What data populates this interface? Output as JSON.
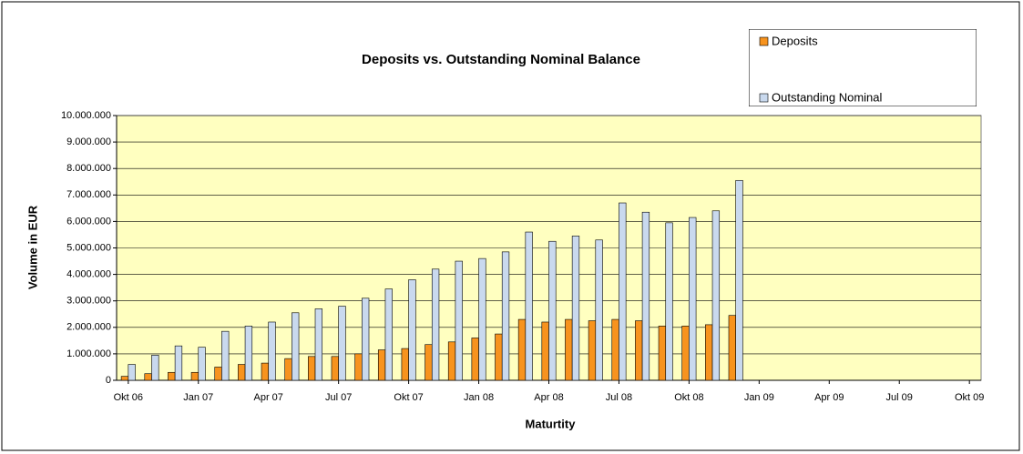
{
  "chart_data": {
    "type": "bar",
    "title": "Deposits vs. Outstanding Nominal Balance",
    "x_label": "Maturtity",
    "y_label": "Volume in EUR",
    "categories": [
      "Okt 06",
      null,
      null,
      "Jan 07",
      null,
      null,
      "Apr 07",
      null,
      null,
      "Jul 07",
      null,
      null,
      "Okt 07",
      null,
      null,
      "Jan 08",
      null,
      null,
      "Apr 08",
      null,
      null,
      "Jul 08",
      null,
      null,
      "Okt 08",
      null,
      null,
      "Jan 09",
      null,
      null,
      "Apr 09",
      null,
      null,
      "Jul 09",
      null,
      null,
      "Okt 09"
    ],
    "series": [
      {
        "name": "Deposits",
        "color": "#f7931e",
        "values": [
          150000,
          250000,
          300000,
          300000,
          500000,
          600000,
          650000,
          820000,
          900000,
          900000,
          1000000,
          1150000,
          1200000,
          1350000,
          1450000,
          1600000,
          1750000,
          2300000,
          2200000,
          2300000,
          2250000,
          2300000,
          2250000,
          2050000,
          2050000,
          2100000,
          2450000,
          null,
          null,
          null,
          null,
          null,
          null,
          null,
          null,
          null,
          null
        ]
      },
      {
        "name": "Outstanding Nominal",
        "color": "#c9d9ee",
        "values": [
          600000,
          950000,
          1300000,
          1250000,
          1850000,
          2050000,
          2200000,
          2550000,
          2700000,
          2800000,
          3100000,
          3450000,
          3800000,
          4200000,
          4500000,
          4600000,
          4850000,
          5600000,
          5250000,
          5450000,
          5300000,
          6700000,
          6350000,
          5950000,
          6150000,
          6400000,
          7550000,
          null,
          null,
          null,
          null,
          null,
          null,
          null,
          null,
          null,
          null
        ]
      }
    ],
    "ylim": [
      0,
      10000000
    ],
    "yticks": [
      0,
      {
        "value": 1000000,
        "label": "1.000.000"
      },
      {
        "value": 2000000,
        "label": "2.000.000"
      },
      {
        "value": 3000000,
        "label": "3.000.000"
      },
      {
        "value": 4000000,
        "label": "4.000.000"
      },
      {
        "value": 5000000,
        "label": "5.000.000"
      },
      {
        "value": 6000000,
        "label": "6.000.000"
      },
      {
        "value": 7000000,
        "label": "7.000.000"
      },
      {
        "value": 8000000,
        "label": "8.000.000"
      },
      {
        "value": 9000000,
        "label": "9.000.000"
      },
      {
        "value": 10000000,
        "label": "10.000.000"
      }
    ],
    "grid": true,
    "legend": "top-right",
    "plot_background": "#ffffc0"
  }
}
